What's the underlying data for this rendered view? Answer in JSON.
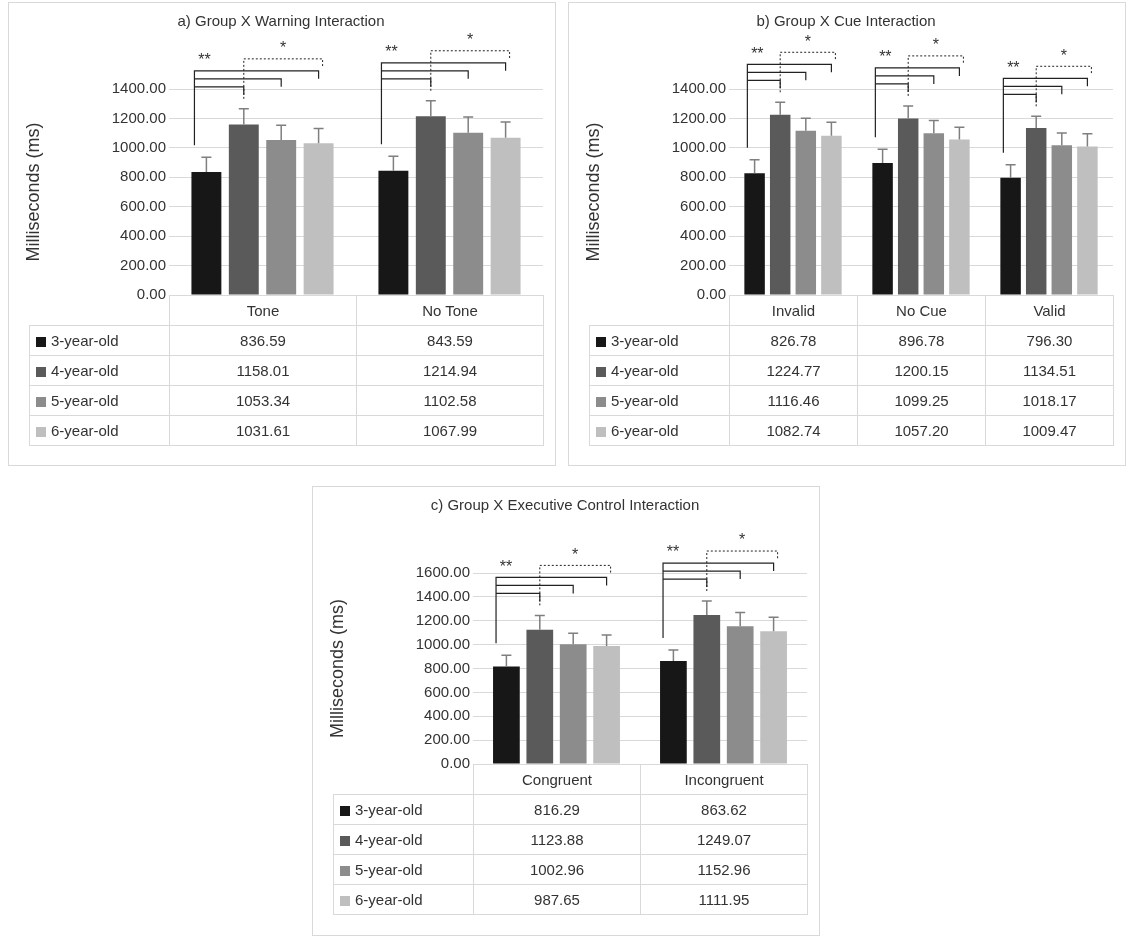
{
  "chart_data": [
    {
      "type": "bar",
      "title": "a) Group X Warning Interaction",
      "ylabel": "Milliseconds (ms)",
      "categories": [
        "Tone",
        "No Tone"
      ],
      "series": [
        {
          "name": "3-year-old",
          "color": "#171717",
          "values": [
            836.59,
            843.59
          ],
          "errors": [
            100,
            100
          ]
        },
        {
          "name": "4-year-old",
          "color": "#5a5a5a",
          "values": [
            1158.01,
            1214.94
          ],
          "errors": [
            107,
            105
          ]
        },
        {
          "name": "5-year-old",
          "color": "#8c8c8c",
          "values": [
            1053.34,
            1102.58
          ],
          "errors": [
            100,
            107
          ]
        },
        {
          "name": "6-year-old",
          "color": "#bfbfbf",
          "values": [
            1031.61,
            1067.99
          ],
          "errors": [
            100,
            107
          ]
        }
      ],
      "ylim": [
        0,
        1400
      ],
      "yticks": [
        {
          "value": 0,
          "label": "0.00"
        },
        {
          "value": 200,
          "label": "200.00"
        },
        {
          "value": 400,
          "label": "400.00"
        },
        {
          "value": 600,
          "label": "600.00"
        },
        {
          "value": 800,
          "label": "800.00"
        },
        {
          "value": 1000,
          "label": "1000.00"
        },
        {
          "value": 1200,
          "label": "1200.00"
        },
        {
          "value": 1400,
          "label": "1400.00"
        }
      ],
      "grid": "y",
      "legend": "bottom",
      "data_labels": true,
      "annotations": [
        "**",
        "*",
        "**",
        "*"
      ]
    },
    {
      "type": "bar",
      "title": "b) Group X Cue Interaction",
      "ylabel": "Milliseconds (ms)",
      "categories": [
        "Invalid",
        "No Cue",
        "Valid"
      ],
      "series": [
        {
          "name": "3-year-old",
          "color": "#171717",
          "values": [
            826.78,
            896.78,
            796.3
          ],
          "value_labels": [
            "826.78",
            "896.78",
            "796.30"
          ],
          "errors": [
            93,
            93,
            89
          ]
        },
        {
          "name": "4-year-old",
          "color": "#5a5a5a",
          "values": [
            1224.77,
            1200.15,
            1134.51
          ],
          "value_labels": [
            "1224.77",
            "1200.15",
            "1134.51"
          ],
          "errors": [
            85,
            85,
            80
          ]
        },
        {
          "name": "5-year-old",
          "color": "#8c8c8c",
          "values": [
            1116.46,
            1099.25,
            1018.17
          ],
          "value_labels": [
            "1116.46",
            "1099.25",
            "1018.17"
          ],
          "errors": [
            84,
            86,
            82
          ]
        },
        {
          "name": "6-year-old",
          "color": "#bfbfbf",
          "values": [
            1082.74,
            1057.2,
            1009.47
          ],
          "value_labels": [
            "1082.74",
            "1057.20",
            "1009.47"
          ],
          "errors": [
            92,
            83,
            86
          ]
        }
      ],
      "ylim": [
        0,
        1400
      ],
      "yticks": [
        {
          "value": 0,
          "label": "0.00"
        },
        {
          "value": 200,
          "label": "200.00"
        },
        {
          "value": 400,
          "label": "400.00"
        },
        {
          "value": 600,
          "label": "600.00"
        },
        {
          "value": 800,
          "label": "800.00"
        },
        {
          "value": 1000,
          "label": "1000.00"
        },
        {
          "value": 1200,
          "label": "1200.00"
        },
        {
          "value": 1400,
          "label": "1400.00"
        }
      ],
      "grid": "y",
      "legend": "bottom",
      "annotations": [
        "**",
        "*",
        "**",
        "*",
        "**",
        "*"
      ]
    },
    {
      "type": "bar",
      "title": "c) Group X Executive Control Interaction",
      "ylabel": "Milliseconds (ms)",
      "categories": [
        "Congruent",
        "Incongruent"
      ],
      "series": [
        {
          "name": "3-year-old",
          "color": "#171717",
          "values": [
            816.29,
            863.62
          ],
          "errors": [
            94,
            91
          ]
        },
        {
          "name": "4-year-old",
          "color": "#5a5a5a",
          "values": [
            1123.88,
            1249.07
          ],
          "errors": [
            121,
            116
          ]
        },
        {
          "name": "5-year-old",
          "color": "#8c8c8c",
          "values": [
            1002.96,
            1152.96
          ],
          "errors": [
            92,
            117
          ]
        },
        {
          "name": "6-year-old",
          "color": "#bfbfbf",
          "values": [
            987.65,
            1111.95
          ],
          "errors": [
            92,
            118
          ]
        }
      ],
      "ylim": [
        0,
        1600
      ],
      "yticks": [
        {
          "value": 0,
          "label": "0.00"
        },
        {
          "value": 200,
          "label": "200.00"
        },
        {
          "value": 400,
          "label": "400.00"
        },
        {
          "value": 600,
          "label": "600.00"
        },
        {
          "value": 800,
          "label": "800.00"
        },
        {
          "value": 1000,
          "label": "1000.00"
        },
        {
          "value": 1200,
          "label": "1200.00"
        },
        {
          "value": 1400,
          "label": "1400.00"
        },
        {
          "value": 1600,
          "label": "1600.00"
        }
      ],
      "grid": "y",
      "legend": "bottom",
      "data_labels": true,
      "annotations": [
        "**",
        "*",
        "**",
        "*"
      ]
    }
  ]
}
